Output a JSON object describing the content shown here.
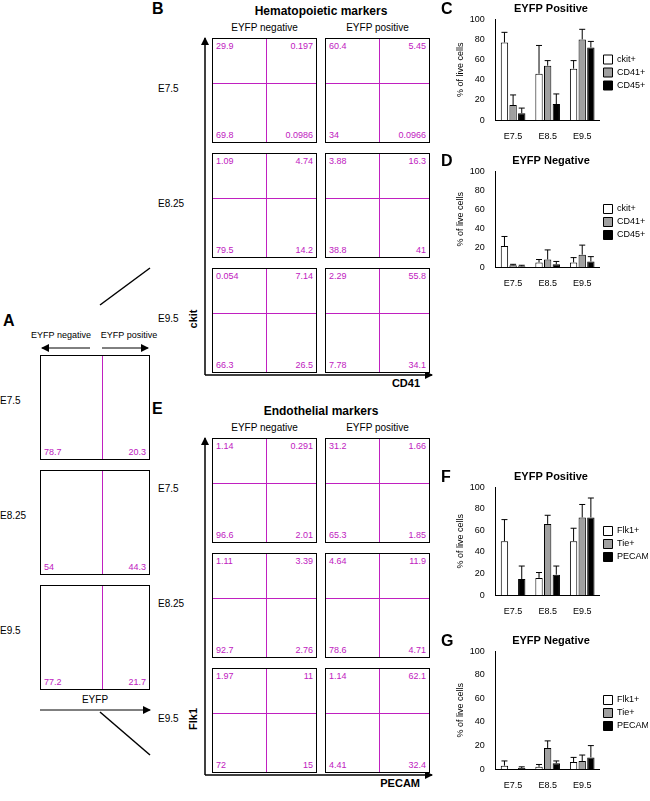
{
  "figure": {
    "A": {
      "label": "A",
      "x_label": "EYFP",
      "columns": [
        "EYFP negative",
        "EYFP positive"
      ],
      "rows": [
        {
          "stage": "E7.5",
          "left": 78.7,
          "right": 20.3
        },
        {
          "stage": "E8.25",
          "left": 54,
          "right": 44.3
        },
        {
          "stage": "E9.5",
          "left": 77.2,
          "right": 21.7
        }
      ]
    },
    "B": {
      "label": "B",
      "title": "Hematopoietic markers",
      "columns": [
        "EYFP negative",
        "EYFP positive"
      ],
      "x_label": "CD41",
      "y_label": "ckit",
      "rows": [
        {
          "stage": "E7.5",
          "plots": [
            {
              "upper_left": 29.9,
              "upper_right": 0.197,
              "lower_left": 69.8,
              "lower_right": 0.0986
            },
            {
              "upper_left": 60.4,
              "upper_right": 5.45,
              "lower_left": 34,
              "lower_right": 0.0966
            }
          ]
        },
        {
          "stage": "E8.25",
          "plots": [
            {
              "upper_left": 1.09,
              "upper_right": 4.74,
              "lower_left": 79.5,
              "lower_right": 14.2
            },
            {
              "upper_left": 3.88,
              "upper_right": 16.3,
              "lower_left": 38.8,
              "lower_right": 41
            }
          ]
        },
        {
          "stage": "E9.5",
          "plots": [
            {
              "upper_left": 0.054,
              "upper_right": 7.14,
              "lower_left": 66.3,
              "lower_right": 26.5
            },
            {
              "upper_left": 2.29,
              "upper_right": 55.8,
              "lower_left": 7.78,
              "lower_right": 34.1
            }
          ]
        }
      ]
    },
    "E": {
      "label": "E",
      "title": "Endothelial markers",
      "columns": [
        "EYFP negative",
        "EYFP positive"
      ],
      "x_label": "PECAM",
      "y_label": "Flk1",
      "rows": [
        {
          "stage": "E7.5",
          "plots": [
            {
              "upper_left": 1.14,
              "upper_right": 0.291,
              "lower_left": 96.6,
              "lower_right": 2.01
            },
            {
              "upper_left": 31.2,
              "upper_right": 1.66,
              "lower_left": 65.3,
              "lower_right": 1.85
            }
          ]
        },
        {
          "stage": "E8.25",
          "plots": [
            {
              "upper_left": 1.11,
              "upper_right": 3.39,
              "lower_left": 92.7,
              "lower_right": 2.76
            },
            {
              "upper_left": 4.64,
              "upper_right": 11.9,
              "lower_left": 78.6,
              "lower_right": 4.71
            }
          ]
        },
        {
          "stage": "E9.5",
          "plots": [
            {
              "upper_left": 1.97,
              "upper_right": 11,
              "lower_left": 72,
              "lower_right": 15
            },
            {
              "upper_left": 1.14,
              "upper_right": 62.1,
              "lower_left": 4.41,
              "lower_right": 32.4
            }
          ]
        }
      ]
    }
  },
  "chart_data": [
    {
      "panel": "C",
      "type": "bar",
      "title": "EYFP Positive",
      "y_label": "% of live cells",
      "categories": [
        "E7.5",
        "E8.5",
        "E9.5"
      ],
      "series": [
        {
          "name": "ckit+",
          "color": "#ffffff",
          "values": [
            77,
            46,
            51
          ],
          "errors": [
            10,
            28,
            8
          ]
        },
        {
          "name": "CD41+",
          "color": "#a0a0a0",
          "values": [
            15,
            54,
            80
          ],
          "errors": [
            10,
            5,
            10
          ]
        },
        {
          "name": "CD45+",
          "color": "#000000",
          "values": [
            7,
            16,
            72
          ],
          "errors": [
            5,
            10,
            6
          ]
        }
      ],
      "ylim": [
        0,
        100
      ],
      "yticks": [
        0,
        20,
        40,
        60,
        80,
        100
      ],
      "grid": false,
      "legend": "right"
    },
    {
      "panel": "D",
      "type": "bar",
      "title": "EYFP Negative",
      "y_label": "% of live cells",
      "categories": [
        "E7.5",
        "E8.5",
        "E9.5"
      ],
      "series": [
        {
          "name": "ckit+",
          "color": "#ffffff",
          "values": [
            22,
            5,
            5
          ],
          "errors": [
            10,
            3,
            5
          ]
        },
        {
          "name": "CD41+",
          "color": "#a0a0a0",
          "values": [
            2,
            8,
            13
          ],
          "errors": [
            1,
            10,
            10
          ]
        },
        {
          "name": "CD45+",
          "color": "#000000",
          "values": [
            1,
            3,
            6
          ],
          "errors": [
            1,
            3,
            5
          ]
        }
      ],
      "ylim": [
        0,
        100
      ],
      "yticks": [
        0,
        20,
        40,
        60,
        80,
        100
      ],
      "grid": false,
      "legend": "right"
    },
    {
      "panel": "F",
      "type": "bar",
      "title": "EYFP Positive",
      "y_label": "% of live cells",
      "categories": [
        "E7.5",
        "E8.5",
        "E9.5"
      ],
      "series": [
        {
          "name": "Flk1+",
          "color": "#ffffff",
          "values": [
            50,
            16,
            50
          ],
          "errors": [
            20,
            5,
            12
          ]
        },
        {
          "name": "Tie+",
          "color": "#a0a0a0",
          "values": [
            null,
            66,
            72
          ],
          "errors": [
            null,
            8,
            12
          ]
        },
        {
          "name": "PECAM+",
          "color": "#000000",
          "values": [
            15,
            19,
            72
          ],
          "errors": [
            12,
            8,
            18
          ]
        }
      ],
      "ylim": [
        0,
        100
      ],
      "yticks": [
        0,
        20,
        40,
        60,
        80,
        100
      ],
      "grid": false,
      "legend": "right"
    },
    {
      "panel": "G",
      "type": "bar",
      "title": "EYFP Negative",
      "y_label": "% of live cells",
      "categories": [
        "E7.5",
        "E8.5",
        "E9.5"
      ],
      "series": [
        {
          "name": "Flk1+",
          "color": "#ffffff",
          "values": [
            3,
            2,
            6
          ],
          "errors": [
            4,
            2,
            4
          ]
        },
        {
          "name": "Tie+",
          "color": "#a0a0a0",
          "values": [
            null,
            18,
            7
          ],
          "errors": [
            null,
            6,
            5
          ]
        },
        {
          "name": "PECAM+",
          "color": "#000000",
          "values": [
            1,
            5,
            10
          ],
          "errors": [
            1,
            2,
            10
          ]
        }
      ],
      "ylim": [
        0,
        100
      ],
      "yticks": [
        0,
        20,
        40,
        60,
        80,
        100
      ],
      "grid": false,
      "legend": "right"
    }
  ]
}
